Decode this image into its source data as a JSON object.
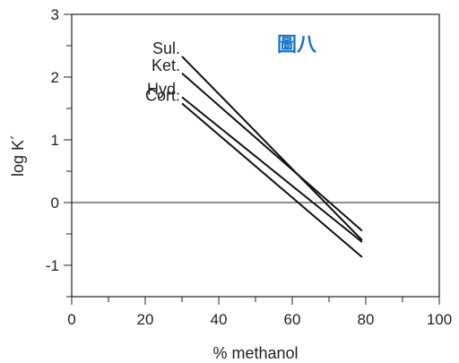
{
  "chart_data": {
    "type": "line",
    "xlabel": "% methanol",
    "ylabel": "log K´",
    "xlim": [
      0,
      100
    ],
    "ylim": [
      -1.5,
      3
    ],
    "xticks": [
      0,
      20,
      40,
      60,
      80,
      100
    ],
    "yticks": [
      -1,
      0,
      1,
      2,
      3
    ],
    "x_minor_step": 10,
    "y_minor_step": 0.5,
    "reference_line_y": 0,
    "annotation": {
      "text": "圖八",
      "color": "#1a73c8"
    },
    "series": [
      {
        "name": "Sul.",
        "x": [
          30,
          79
        ],
        "y": [
          2.33,
          -0.6
        ]
      },
      {
        "name": "Ket.",
        "x": [
          30,
          79
        ],
        "y": [
          2.06,
          -0.45
        ]
      },
      {
        "name": "Hyd.",
        "x": [
          30,
          79
        ],
        "y": [
          1.68,
          -0.63
        ]
      },
      {
        "name": "Cort.",
        "x": [
          30,
          79
        ],
        "y": [
          1.58,
          -0.87
        ]
      }
    ]
  }
}
